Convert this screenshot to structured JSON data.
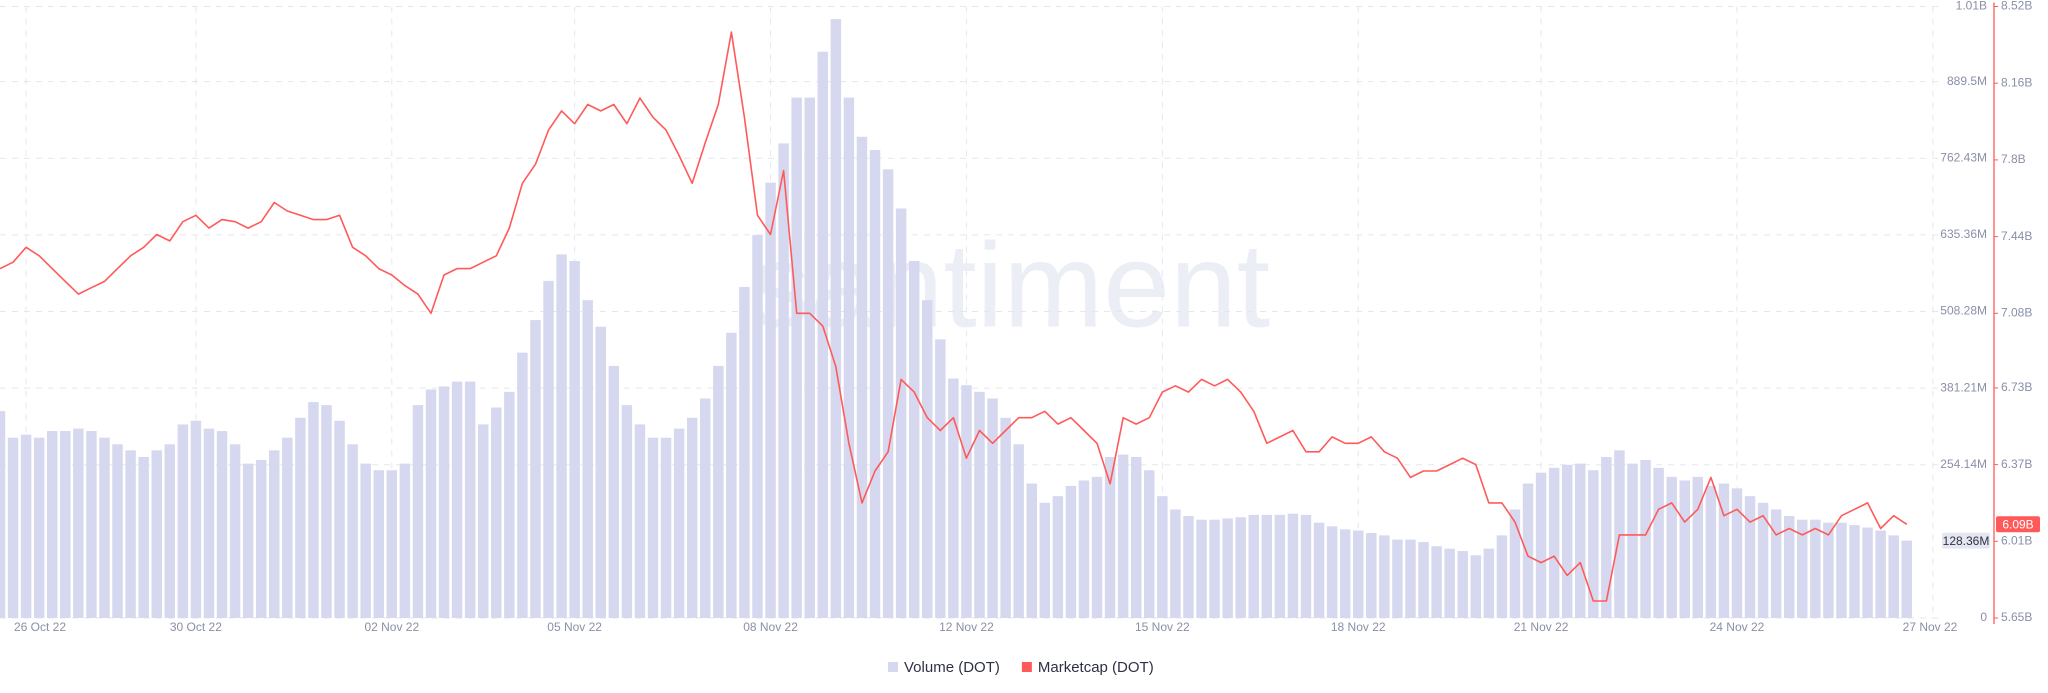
{
  "watermark": "santiment",
  "chart_data": {
    "type": "line",
    "categories": [
      null,
      null,
      "26 Oct 22",
      null,
      null,
      null,
      null,
      null,
      null,
      null,
      null,
      null,
      null,
      null,
      null,
      "30 Oct 22",
      null,
      null,
      null,
      null,
      null,
      null,
      null,
      null,
      null,
      null,
      null,
      null,
      null,
      null,
      "02 Nov 22",
      null,
      null,
      null,
      null,
      null,
      null,
      null,
      null,
      null,
      null,
      null,
      null,
      null,
      "05 Nov 22",
      null,
      null,
      null,
      null,
      null,
      null,
      null,
      null,
      null,
      null,
      null,
      null,
      null,
      null,
      "08 Nov 22",
      null,
      null,
      null,
      null,
      null,
      null,
      null,
      null,
      null,
      null,
      null,
      null,
      null,
      null,
      "12 Nov 22",
      null,
      null,
      null,
      null,
      null,
      null,
      null,
      null,
      null,
      null,
      null,
      null,
      null,
      null,
      "15 Nov 22",
      null,
      null,
      null,
      null,
      null,
      null,
      null,
      null,
      null,
      null,
      null,
      null,
      null,
      null,
      "18 Nov 22",
      null,
      null,
      null,
      null,
      null,
      null,
      null,
      null,
      null,
      null,
      null,
      null,
      null,
      "21 Nov 22",
      null,
      null,
      null,
      null,
      null,
      null,
      null,
      null,
      null,
      null,
      null,
      null,
      null,
      null,
      "24 Nov 22",
      null,
      null,
      null,
      null,
      null,
      null,
      null,
      null,
      null,
      null,
      null,
      null,
      null,
      null,
      "27 Nov 22"
    ],
    "series": [
      {
        "name": "Volume (DOT)",
        "type": "bar",
        "color": "#d5d8ee",
        "last_value_label": "128.36M",
        "values": [
          343,
          299,
          304,
          299,
          310,
          310,
          314,
          310,
          299,
          288,
          278,
          267,
          278,
          288,
          321,
          327,
          314,
          310,
          288,
          256,
          262,
          278,
          299,
          332,
          358,
          353,
          327,
          288,
          256,
          245,
          245,
          256,
          353,
          379,
          384,
          392,
          392,
          321,
          349,
          375,
          440,
          494,
          559,
          603,
          592,
          527,
          483,
          418,
          353,
          321,
          299,
          299,
          314,
          332,
          364,
          418,
          473,
          549,
          635,
          722,
          787,
          863,
          863,
          939,
          993,
          863,
          798,
          776,
          744,
          679,
          592,
          527,
          462,
          397,
          386,
          375,
          364,
          332,
          288,
          223,
          191,
          202,
          219,
          228,
          234,
          267,
          271,
          267,
          245,
          202,
          180,
          169,
          163,
          163,
          165,
          167,
          171,
          171,
          171,
          173,
          171,
          158,
          152,
          147,
          145,
          141,
          137,
          130,
          130,
          126,
          119,
          115,
          111,
          104,
          115,
          137,
          180,
          223,
          241,
          249,
          254,
          256,
          245,
          267,
          278,
          256,
          262,
          249,
          234,
          228,
          234,
          219,
          223,
          215,
          202,
          191,
          180,
          169,
          163,
          163,
          158,
          158,
          154,
          150,
          145,
          137,
          128.36,
          null,
          null
        ]
      },
      {
        "name": "Marketcap (DOT)",
        "type": "line",
        "axis": "y2",
        "color": "#ff5a5a",
        "last_value_label": "6.09B",
        "values": [
          7.29,
          7.32,
          7.39,
          7.35,
          7.29,
          7.23,
          7.17,
          7.2,
          7.23,
          7.29,
          7.35,
          7.39,
          7.45,
          7.42,
          7.51,
          7.54,
          7.48,
          7.52,
          7.51,
          7.48,
          7.51,
          7.6,
          7.56,
          7.54,
          7.52,
          7.52,
          7.54,
          7.39,
          7.35,
          7.29,
          7.26,
          7.21,
          7.17,
          7.08,
          7.26,
          7.29,
          7.29,
          7.32,
          7.35,
          7.48,
          7.69,
          7.78,
          7.94,
          8.03,
          7.97,
          8.06,
          8.03,
          8.06,
          7.97,
          8.09,
          8.0,
          7.94,
          7.82,
          7.69,
          7.88,
          8.06,
          8.4,
          8.0,
          7.54,
          7.45,
          7.75,
          7.08,
          7.08,
          7.02,
          6.83,
          6.47,
          6.19,
          6.34,
          6.43,
          6.77,
          6.71,
          6.59,
          6.53,
          6.59,
          6.4,
          6.53,
          6.47,
          6.53,
          6.59,
          6.59,
          6.62,
          6.56,
          6.59,
          6.53,
          6.47,
          6.28,
          6.59,
          6.56,
          6.59,
          6.71,
          6.74,
          6.71,
          6.77,
          6.74,
          6.77,
          6.71,
          6.62,
          6.47,
          6.5,
          6.53,
          6.43,
          6.43,
          6.5,
          6.47,
          6.47,
          6.5,
          6.43,
          6.4,
          6.31,
          6.34,
          6.34,
          6.37,
          6.4,
          6.37,
          6.19,
          6.19,
          6.1,
          5.94,
          5.91,
          5.94,
          5.85,
          5.91,
          5.73,
          5.73,
          6.04,
          6.04,
          6.04,
          6.16,
          6.19,
          6.1,
          6.16,
          6.31,
          6.13,
          6.16,
          6.1,
          6.13,
          6.04,
          6.07,
          6.04,
          6.07,
          6.04,
          6.13,
          6.16,
          6.19,
          6.07,
          6.13,
          6.09,
          null,
          null
        ]
      }
    ],
    "ylim": [
      0,
      1014
    ],
    "yticks": [
      0,
      {
        "value": 254.14,
        "label": "254.14M"
      },
      {
        "value": 381.21,
        "label": "381.21M"
      },
      {
        "value": 508.28,
        "label": "508.28M"
      },
      {
        "value": 635.36,
        "label": "635.36M"
      },
      {
        "value": 762.43,
        "label": "762.43M"
      },
      {
        "value": 889.5,
        "label": "889.5M"
      },
      {
        "value": 1014,
        "label": "1.01B"
      }
    ],
    "y2lim": [
      5.65,
      8.52
    ],
    "y2ticks": [
      {
        "value": 5.65,
        "label": "5.65B"
      },
      {
        "value": 6.01,
        "label": "6.01B"
      },
      {
        "value": 6.37,
        "label": "6.37B"
      },
      {
        "value": 6.73,
        "label": "6.73B"
      },
      {
        "value": 7.08,
        "label": "7.08B"
      },
      {
        "value": 7.44,
        "label": "7.44B"
      },
      {
        "value": 7.8,
        "label": "7.8B"
      },
      {
        "value": 8.16,
        "label": "8.16B"
      },
      {
        "value": 8.52,
        "label": "8.52B"
      }
    ],
    "grid": true,
    "legend": "bottom"
  }
}
